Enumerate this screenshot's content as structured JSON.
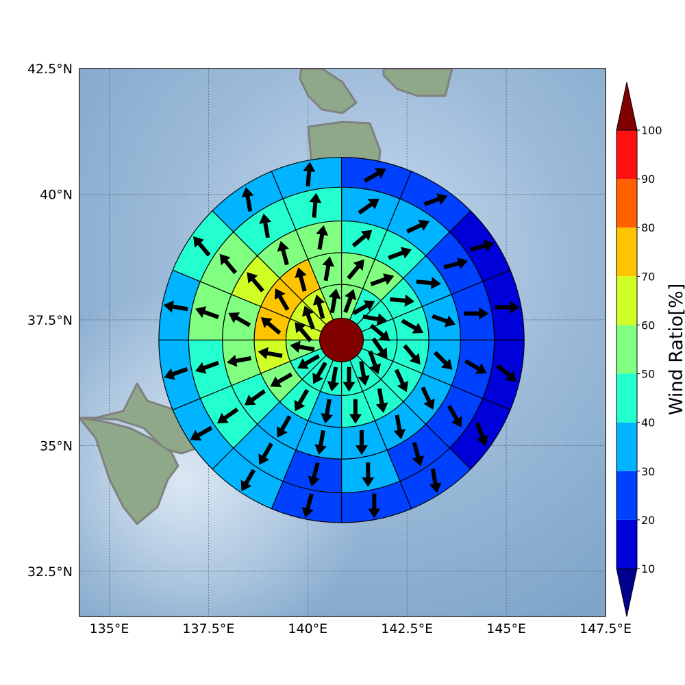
{
  "map": {
    "lon_range": [
      134.25,
      147.5
    ],
    "lat_range": [
      31.6,
      42.5
    ],
    "lon_ticks": [
      {
        "value": 135,
        "label": "135°E"
      },
      {
        "value": 137.5,
        "label": "137.5°E"
      },
      {
        "value": 140,
        "label": "140°E"
      },
      {
        "value": 142.5,
        "label": "142.5°E"
      },
      {
        "value": 145,
        "label": "145°E"
      },
      {
        "value": 147.5,
        "label": "147.5°E"
      }
    ],
    "lat_ticks": [
      {
        "value": 32.5,
        "label": "32.5°N"
      },
      {
        "value": 35,
        "label": "35°N"
      },
      {
        "value": 37.5,
        "label": "37.5°N"
      },
      {
        "value": 40,
        "label": "40°N"
      },
      {
        "value": 42.5,
        "label": "42.5°N"
      }
    ],
    "gridlines": true,
    "center": {
      "lon": 140.85,
      "lat": 37.1
    },
    "center_value": 100,
    "coastline_color": "#808080",
    "ocean_color": "#8fb0d0",
    "land_color": "#8fa88a"
  },
  "colorbar": {
    "title": "Wind Ratio[%]",
    "ticks": [
      "10",
      "20",
      "30",
      "40",
      "50",
      "60",
      "70",
      "80",
      "90",
      "100"
    ],
    "levels": [
      10,
      20,
      30,
      40,
      50,
      60,
      70,
      80,
      90,
      100
    ],
    "colors": [
      "#0000d8",
      "#0040ff",
      "#00b4ff",
      "#24ffcf",
      "#80ff80",
      "#cfff24",
      "#ffc400",
      "#ff6000",
      "#ff1010"
    ],
    "under_color": "#00008f",
    "over_color": "#800000"
  },
  "chart_data": {
    "type": "polar-grid-wind",
    "rings_deg": [
      0.55,
      1.4,
      2.2,
      3.0,
      3.85,
      4.6
    ],
    "sectors": 16,
    "sector_order": "clockwise from north",
    "values": [
      [
        50,
        45,
        45,
        40,
        40,
        40,
        40,
        40,
        40,
        40,
        40,
        55,
        65,
        65,
        65,
        55
      ],
      [
        55,
        55,
        45,
        45,
        40,
        40,
        40,
        40,
        35,
        45,
        50,
        65,
        70,
        70,
        70,
        55
      ],
      [
        45,
        45,
        35,
        35,
        35,
        35,
        35,
        35,
        35,
        35,
        45,
        50,
        55,
        65,
        55,
        55
      ],
      [
        35,
        35,
        25,
        25,
        25,
        25,
        25,
        35,
        25,
        35,
        45,
        45,
        55,
        55,
        45,
        40
      ],
      [
        25,
        25,
        15,
        15,
        15,
        15,
        25,
        25,
        25,
        35,
        35,
        35,
        35,
        45,
        35,
        35
      ]
    ],
    "wind_dir_deg": [
      [
        20,
        60,
        100,
        130,
        145,
        160,
        170,
        180,
        190,
        210,
        240,
        280,
        320,
        340,
        345,
        10
      ],
      [
        40,
        70,
        95,
        120,
        140,
        155,
        170,
        180,
        190,
        210,
        240,
        280,
        310,
        330,
        345,
        10
      ],
      [
        50,
        70,
        95,
        110,
        135,
        155,
        170,
        180,
        190,
        210,
        235,
        260,
        300,
        320,
        345,
        10
      ],
      [
        55,
        65,
        75,
        90,
        120,
        150,
        165,
        180,
        195,
        210,
        235,
        250,
        290,
        320,
        350,
        5
      ],
      [
        60,
        70,
        75,
        90,
        130,
        160,
        170,
        180,
        195,
        210,
        240,
        250,
        280,
        320,
        350,
        5
      ]
    ]
  }
}
